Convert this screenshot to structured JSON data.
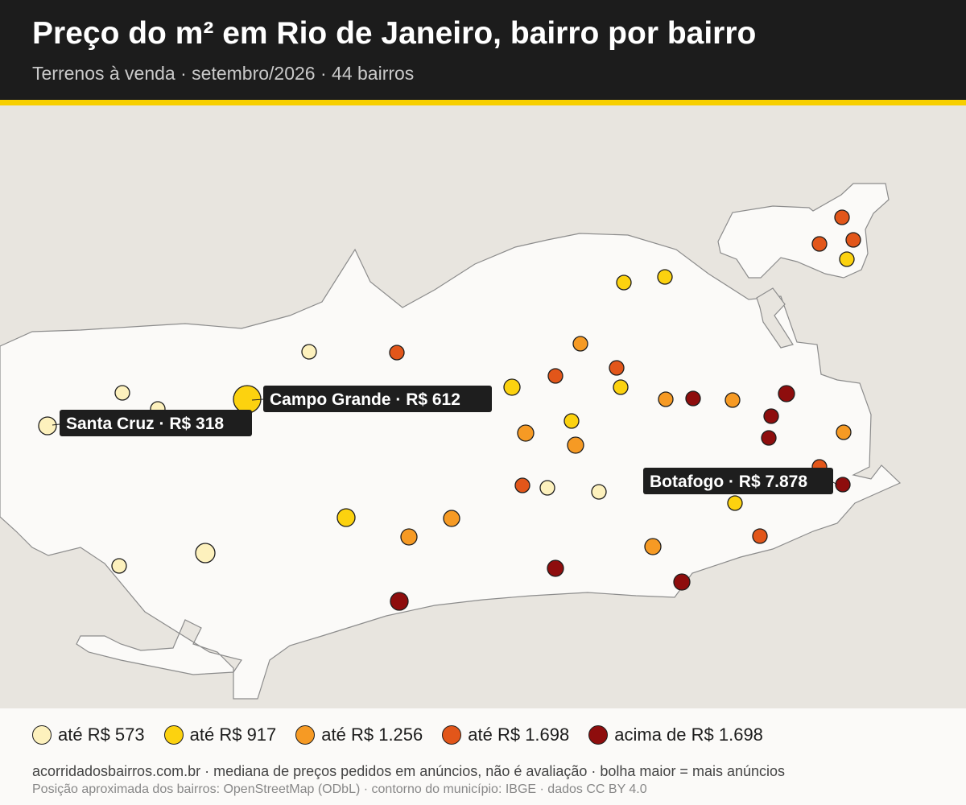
{
  "header": {
    "title": "Preço do m² em Rio de Janeiro, bairro por bairro",
    "subtitle": "Terrenos à venda · setembro/2026 · 44 bairros"
  },
  "colors": {
    "header_bg": "#1c1c1c",
    "accent": "#f7cf00",
    "water": "#e8e5df",
    "land": "#fbfaf8"
  },
  "legend": [
    {
      "label": "até R$ 573",
      "color": "#fdf1bd"
    },
    {
      "label": "até R$ 917",
      "color": "#fcd20f"
    },
    {
      "label": "até R$ 1.256",
      "color": "#f69a24"
    },
    {
      "label": "até R$ 1.698",
      "color": "#e2561a"
    },
    {
      "label": "acima de R$ 1.698",
      "color": "#8e0d0d"
    }
  ],
  "callouts": [
    {
      "label": "Campo Grande · R$ 612"
    },
    {
      "label": "Santa Cruz · R$ 318"
    },
    {
      "label": "Botafogo · R$ 7.878"
    }
  ],
  "footer": {
    "line1": "acorridadosbairros.com.br · mediana de preços pedidos em anúncios, não é avaliação · bolha maior = mais anúncios",
    "line2": "Posição aproximada dos bairros: OpenStreetMap (ODbL) · contorno do município: IBGE · dados CC BY 4.0"
  }
}
